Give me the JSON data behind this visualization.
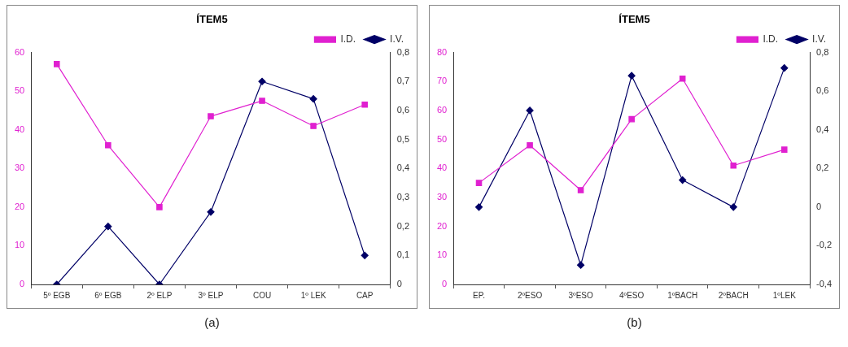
{
  "chart_data": [
    {
      "type": "line",
      "title": "ÍTEM5",
      "categories": [
        "5º EGB",
        "6º EGB",
        "2º ELP",
        "3º ELP",
        "COU",
        "1º LEK",
        "CAP"
      ],
      "series": [
        {
          "name": "I.D.",
          "color": "#e020d0",
          "marker": "square",
          "values": [
            57,
            36,
            20,
            43.5,
            47.5,
            41,
            46.5
          ]
        },
        {
          "name": "I.V.",
          "color": "#000066",
          "marker": "diamond",
          "axis": "y2",
          "values": [
            0,
            0.2,
            0,
            0.25,
            0.7,
            0.64,
            0.1
          ]
        }
      ],
      "ylim": [
        0,
        60
      ],
      "yticks": [
        0,
        10,
        20,
        30,
        40,
        50,
        60
      ],
      "y2lim": [
        0,
        0.8
      ],
      "y2ticks": [
        0,
        {
          "value": 0.1,
          "label": "0,1"
        },
        {
          "value": 0.2,
          "label": "0,2"
        },
        {
          "value": 0.3,
          "label": "0,3"
        },
        {
          "value": 0.4,
          "label": "0,4"
        },
        {
          "value": 0.5,
          "label": "0,5"
        },
        {
          "value": 0.6,
          "label": "0,6"
        },
        {
          "value": 0.7,
          "label": "0,7"
        },
        {
          "value": 0.8,
          "label": "0,8"
        }
      ],
      "legend": "top right",
      "grid": false,
      "annotations": [
        "(a)"
      ]
    },
    {
      "type": "line",
      "title": "ÍTEM5",
      "categories": [
        "EP.",
        "2ºESO",
        "3ºESO",
        "4ºESO",
        "1ºBACH",
        "2ºBACH",
        "1ºLEK"
      ],
      "series": [
        {
          "name": "I.D.",
          "color": "#e020d0",
          "marker": "square",
          "values": [
            35,
            48,
            32.5,
            57,
            71,
            41,
            46.5
          ]
        },
        {
          "name": "I.V.",
          "color": "#000066",
          "marker": "diamond",
          "axis": "y2",
          "values": [
            0,
            0.5,
            -0.3,
            0.68,
            0.14,
            0,
            0.72
          ]
        }
      ],
      "ylim": [
        0,
        80
      ],
      "yticks": [
        0,
        10,
        20,
        30,
        40,
        50,
        60,
        70,
        80
      ],
      "y2lim": [
        -0.4,
        0.8
      ],
      "y2ticks": [
        {
          "value": -0.4,
          "label": "-0,4"
        },
        {
          "value": -0.2,
          "label": "-0,2"
        },
        0,
        {
          "value": 0.2,
          "label": "0,2"
        },
        {
          "value": 0.4,
          "label": "0,4"
        },
        {
          "value": 0.6,
          "label": "0,6"
        },
        {
          "value": 0.8,
          "label": "0,8"
        }
      ],
      "legend": "top right",
      "grid": false,
      "annotations": [
        "(b)"
      ]
    }
  ]
}
